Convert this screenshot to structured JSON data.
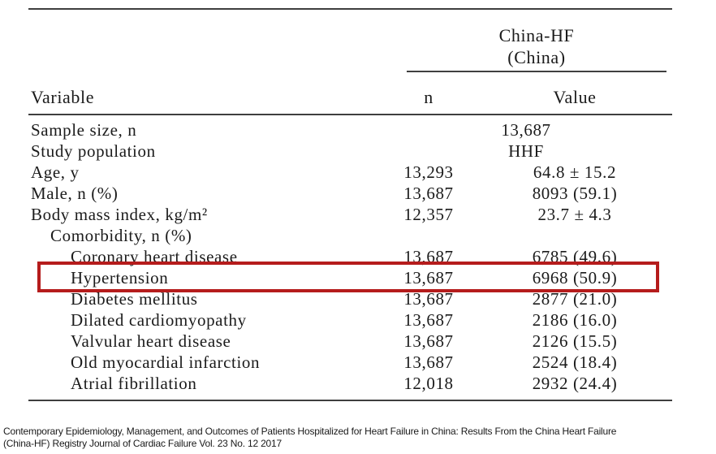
{
  "table": {
    "group_header": [
      "China-HF",
      "(China)"
    ],
    "columns": {
      "variable": "Variable",
      "n": "n",
      "value": "Value"
    },
    "rows": [
      {
        "label": "Sample size, n",
        "n": "",
        "value": "13,687",
        "indent": 0,
        "span": true,
        "highlighted": false
      },
      {
        "label": "Study population",
        "n": "",
        "value": "HHF",
        "indent": 0,
        "span": true,
        "highlighted": false
      },
      {
        "label": "Age, y",
        "n": "13,293",
        "value": "64.8 ± 15.2",
        "indent": 0,
        "span": false,
        "highlighted": false
      },
      {
        "label": "Male, n (%)",
        "n": "13,687",
        "value": "8093 (59.1)",
        "indent": 0,
        "span": false,
        "highlighted": false
      },
      {
        "label": "Body mass index, kg/m²",
        "n": "12,357",
        "value": "23.7 ± 4.3",
        "indent": 0,
        "span": false,
        "highlighted": false
      },
      {
        "label": "Comorbidity, n (%)",
        "n": "",
        "value": "",
        "indent": 1,
        "span": false,
        "highlighted": false
      },
      {
        "label": "Coronary heart disease",
        "n": "13,687",
        "value": "6785 (49.6)",
        "indent": 2,
        "span": false,
        "highlighted": false
      },
      {
        "label": "Hypertension",
        "n": "13,687",
        "value": "6968 (50.9)",
        "indent": 2,
        "span": false,
        "highlighted": true
      },
      {
        "label": "Diabetes mellitus",
        "n": "13,687",
        "value": "2877 (21.0)",
        "indent": 2,
        "span": false,
        "highlighted": false
      },
      {
        "label": "Dilated cardiomyopathy",
        "n": "13,687",
        "value": "2186 (16.0)",
        "indent": 2,
        "span": false,
        "highlighted": false
      },
      {
        "label": "Valvular heart disease",
        "n": "13,687",
        "value": "2126 (15.5)",
        "indent": 2,
        "span": false,
        "highlighted": false
      },
      {
        "label": "Old myocardial infarction",
        "n": "13,687",
        "value": "2524 (18.4)",
        "indent": 2,
        "span": false,
        "highlighted": false
      },
      {
        "label": "Atrial fibrillation",
        "n": "12,018",
        "value": "2932 (24.4)",
        "indent": 2,
        "span": false,
        "highlighted": false
      }
    ]
  },
  "highlight": {
    "highlighted_row": "Hypertension",
    "border_color": "#b51c1c"
  },
  "caption": {
    "lines": [
      "Contemporary Epidemiology, Management, and Outcomes of Patients Hospitalized for Heart Failure in China: Results From the China Heart Failure",
      "(China-HF) Registry Journal of Cardiac Failure Vol. 23 No. 12 2017"
    ]
  }
}
